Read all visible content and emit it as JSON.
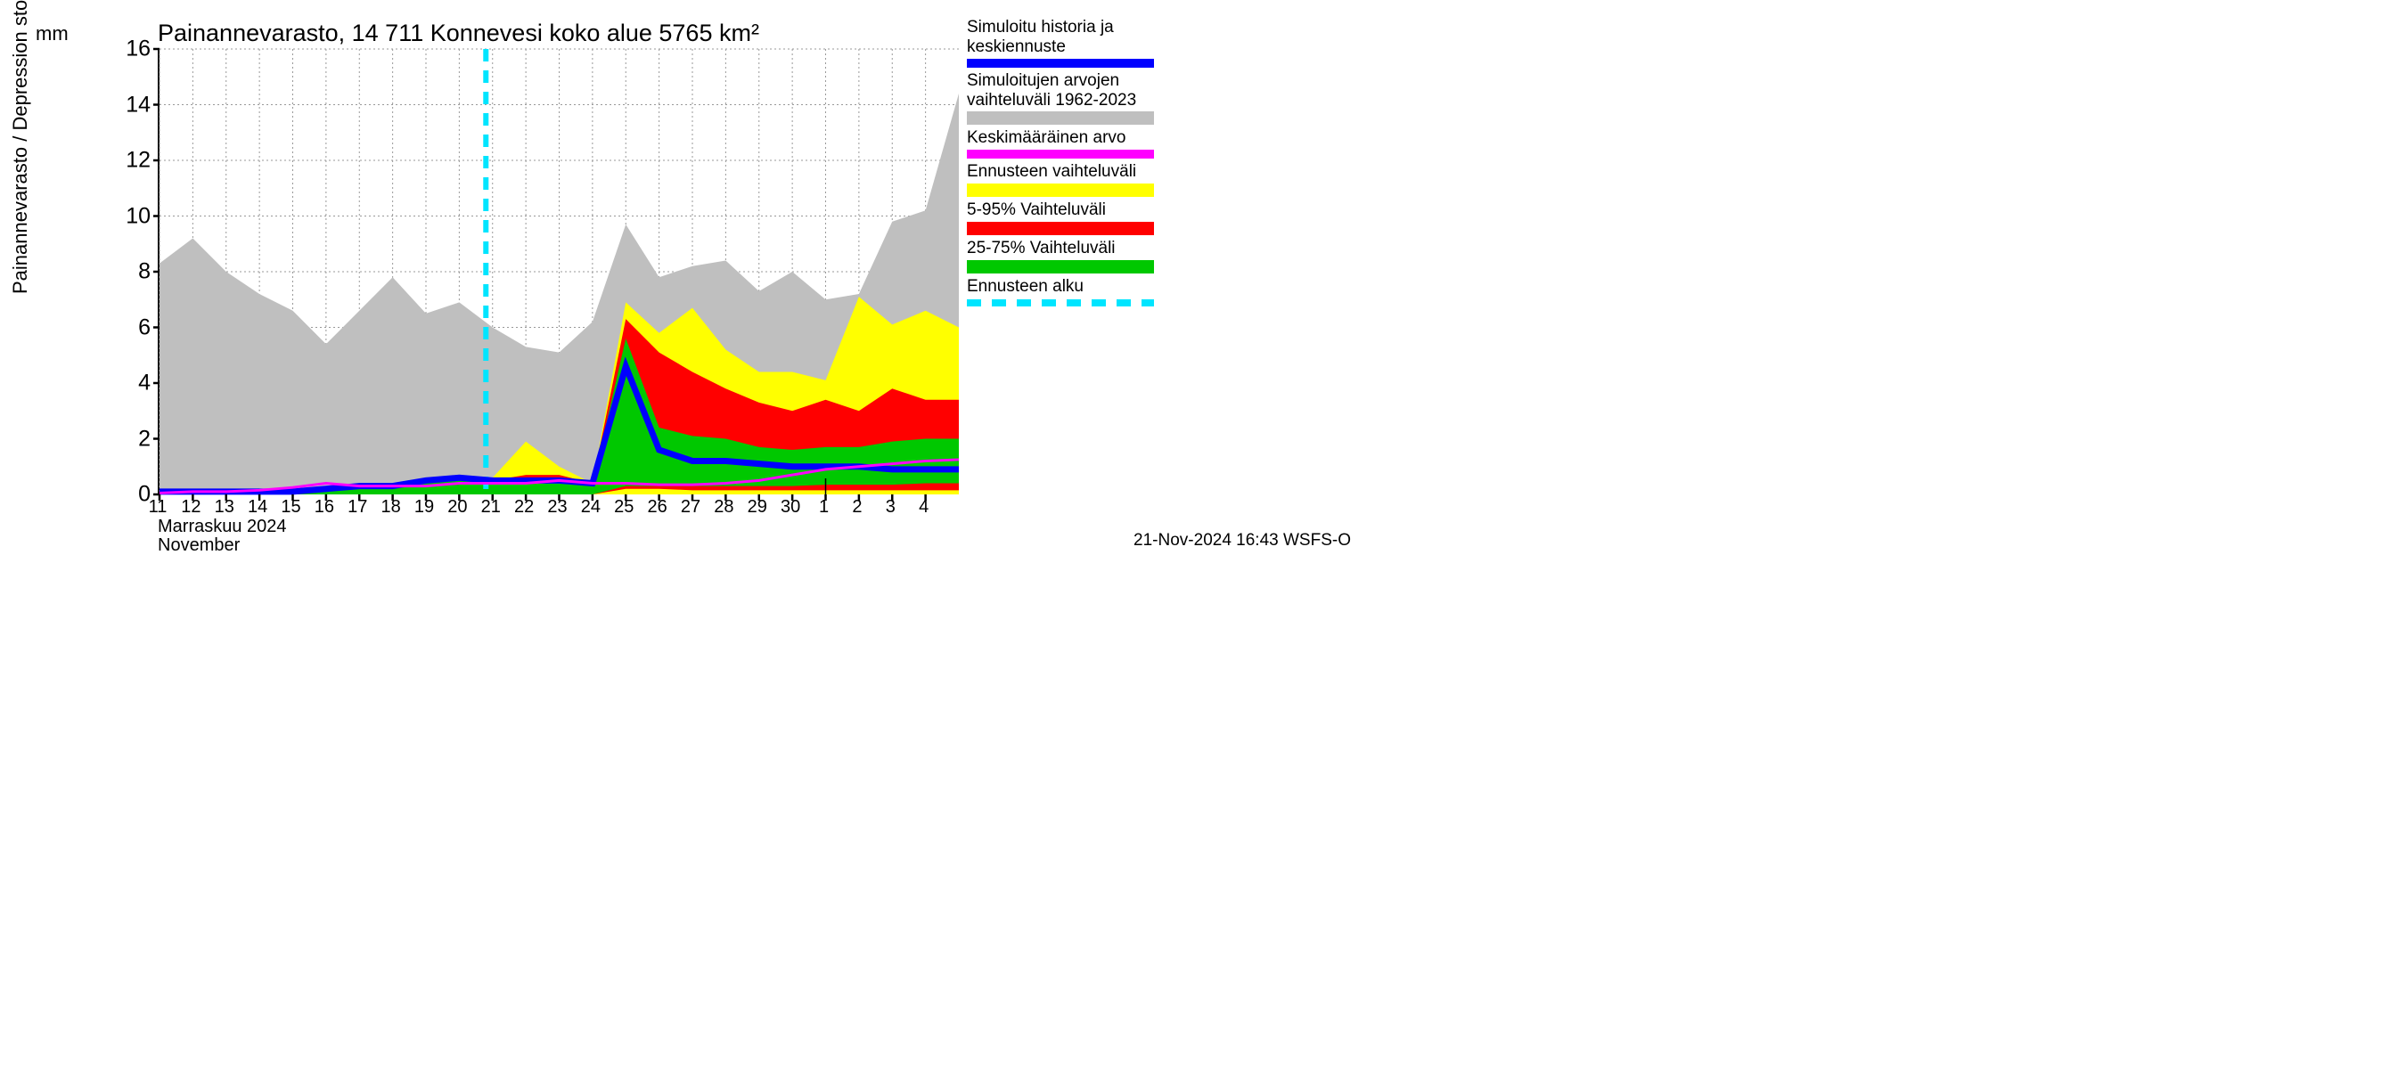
{
  "chart": {
    "title": "Painannevarasto, 14 711 Konnevesi koko alue 5765 km²",
    "y_axis_label": "Painannevarasto / Depression storage",
    "y_axis_unit": "mm",
    "ylim": [
      0,
      16
    ],
    "yticks": [
      0,
      2,
      4,
      6,
      8,
      10,
      12,
      14,
      16
    ],
    "xlim": [
      0,
      24
    ],
    "x_tick_labels": [
      "11",
      "12",
      "13",
      "14",
      "15",
      "16",
      "17",
      "18",
      "19",
      "20",
      "21",
      "22",
      "23",
      "24",
      "25",
      "26",
      "27",
      "28",
      "29",
      "30",
      "1",
      "2",
      "3",
      "4"
    ],
    "month_label_fi": "Marraskuu 2024",
    "month_label_en": "November",
    "forecast_start_x": 9.8,
    "month_separator_x": 20,
    "background_color": "#ffffff",
    "grid_color": "#999999",
    "grid_dash": "2,3",
    "series": {
      "hist_range_upper": [
        8.3,
        9.2,
        8.0,
        7.2,
        6.6,
        5.4,
        6.6,
        7.8,
        6.5,
        6.9,
        6.0,
        5.3,
        5.1,
        6.2,
        9.7,
        7.8,
        8.2,
        8.4,
        7.3,
        8.0,
        7.0,
        7.2,
        9.8,
        10.2,
        14.4
      ],
      "hist_range_lower": [
        0,
        0,
        0,
        0,
        0,
        0,
        0,
        0,
        0,
        0,
        0,
        0,
        0,
        0,
        0,
        0,
        0,
        0,
        0,
        0,
        0,
        0,
        0,
        0,
        0
      ],
      "yellow_upper": [
        0.1,
        0.1,
        0.1,
        0.1,
        0.1,
        0.2,
        0.3,
        0.3,
        0.5,
        0.6,
        0.6,
        1.9,
        1.0,
        0.4,
        6.9,
        5.8,
        6.7,
        5.2,
        4.4,
        4.4,
        4.1,
        7.1,
        6.1,
        6.6,
        6.0
      ],
      "yellow_lower": [
        0,
        0,
        0,
        0,
        0,
        0,
        0,
        0,
        0,
        0,
        0,
        0,
        0,
        0,
        0,
        0,
        0,
        0,
        0,
        0,
        0,
        0,
        0,
        0,
        0
      ],
      "red_upper": [
        0.1,
        0.1,
        0.1,
        0.1,
        0.1,
        0.2,
        0.3,
        0.3,
        0.5,
        0.6,
        0.5,
        0.7,
        0.7,
        0.4,
        6.3,
        5.1,
        4.4,
        3.8,
        3.3,
        3.0,
        3.4,
        3.0,
        3.8,
        3.4,
        3.4
      ],
      "red_lower": [
        0,
        0,
        0,
        0,
        0,
        0,
        0,
        0,
        0,
        0,
        0,
        0,
        0,
        0,
        0.2,
        0.2,
        0.15,
        0.15,
        0.15,
        0.15,
        0.15,
        0.15,
        0.15,
        0.15,
        0.15
      ],
      "green_upper": [
        0.1,
        0.1,
        0.1,
        0.1,
        0.1,
        0.2,
        0.3,
        0.3,
        0.5,
        0.6,
        0.5,
        0.5,
        0.5,
        0.4,
        5.6,
        2.4,
        2.1,
        2.0,
        1.7,
        1.6,
        1.7,
        1.7,
        1.9,
        2.0,
        2.0
      ],
      "green_lower": [
        0,
        0,
        0,
        0,
        0,
        0,
        0,
        0,
        0,
        0,
        0,
        0,
        0,
        0,
        0.3,
        0.3,
        0.3,
        0.3,
        0.3,
        0.3,
        0.35,
        0.35,
        0.35,
        0.4,
        0.4
      ],
      "blue_line": [
        0.1,
        0.1,
        0.1,
        0.1,
        0.1,
        0.2,
        0.3,
        0.3,
        0.5,
        0.6,
        0.5,
        0.5,
        0.5,
        0.4,
        4.6,
        1.6,
        1.2,
        1.2,
        1.1,
        1.0,
        1.0,
        1.0,
        0.9,
        0.9,
        0.9
      ],
      "magenta_line": [
        0.05,
        0.1,
        0.1,
        0.15,
        0.25,
        0.4,
        0.3,
        0.3,
        0.3,
        0.4,
        0.4,
        0.4,
        0.5,
        0.4,
        0.4,
        0.35,
        0.35,
        0.4,
        0.5,
        0.7,
        0.9,
        1.0,
        1.1,
        1.2,
        1.25
      ]
    },
    "colors": {
      "hist_range": "#bfbfbf",
      "yellow": "#ffff00",
      "red": "#ff0000",
      "green": "#00c800",
      "blue": "#0000ff",
      "magenta": "#ff00ff",
      "cyan": "#00e5ff"
    },
    "line_widths": {
      "blue": 7,
      "magenta": 3,
      "forecast_dash": 6
    }
  },
  "legend": [
    {
      "label_lines": [
        "Simuloitu historia ja",
        "keskiennuste"
      ],
      "type": "line",
      "color": "#0000ff"
    },
    {
      "label_lines": [
        "Simuloitujen arvojen",
        "vaihteluväli 1962-2023"
      ],
      "type": "fill",
      "color": "#bfbfbf"
    },
    {
      "label_lines": [
        "Keskimääräinen arvo"
      ],
      "type": "line",
      "color": "#ff00ff"
    },
    {
      "label_lines": [
        "Ennusteen vaihteluväli"
      ],
      "type": "fill",
      "color": "#ffff00"
    },
    {
      "label_lines": [
        "5-95% Vaihteluväli"
      ],
      "type": "fill",
      "color": "#ff0000"
    },
    {
      "label_lines": [
        "25-75% Vaihteluväli"
      ],
      "type": "fill",
      "color": "#00c800"
    },
    {
      "label_lines": [
        "Ennusteen alku"
      ],
      "type": "dash",
      "color": "#00e5ff"
    }
  ],
  "footer": {
    "timestamp": "21-Nov-2024 16:43 WSFS-O"
  }
}
